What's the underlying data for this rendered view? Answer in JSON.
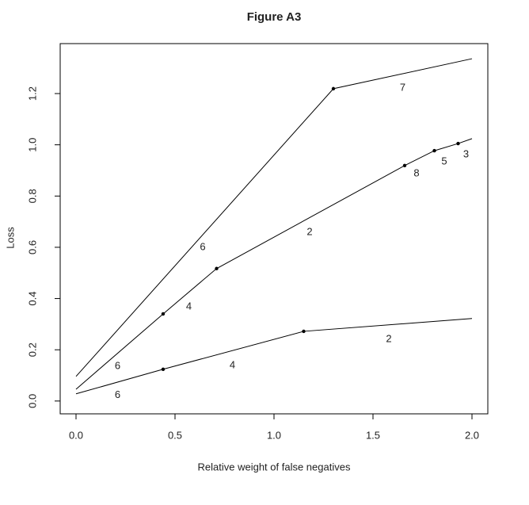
{
  "chart_data": {
    "type": "line",
    "title": "Figure A3",
    "x_label": "Relative weight of false negatives",
    "y_label": "Loss",
    "xlim": [
      -0.08,
      2.08
    ],
    "ylim": [
      -0.05,
      1.395
    ],
    "xticks": [
      {
        "value": 0,
        "label": "0.0"
      },
      {
        "value": 0.5,
        "label": "0.5"
      },
      {
        "value": 1,
        "label": "1.0"
      },
      {
        "value": 1.5,
        "label": "1.5"
      },
      {
        "value": 2,
        "label": "2.0"
      }
    ],
    "yticks": [
      {
        "value": 0,
        "label": "0.0"
      },
      {
        "value": 0.2,
        "label": "0.2"
      },
      {
        "value": 0.4,
        "label": "0.4"
      },
      {
        "value": 0.6,
        "label": "0.6"
      },
      {
        "value": 0.8,
        "label": "0.8"
      },
      {
        "value": 1,
        "label": "1.0"
      },
      {
        "value": 1.2,
        "label": "1.2"
      }
    ],
    "series": [
      {
        "color": "#000000",
        "x": [
          0,
          1.3,
          2.0
        ],
        "values": [
          0.096,
          1.219,
          1.336
        ],
        "markers": {
          "x": [
            1.3
          ],
          "values": [
            1.219
          ]
        }
      },
      {
        "color": "#000000",
        "x": [
          0,
          0.44,
          0.71,
          1.66,
          1.81,
          1.93,
          2.0
        ],
        "values": [
          0.046,
          0.34,
          0.517,
          0.919,
          0.977,
          1.005,
          1.024
        ],
        "markers": {
          "x": [
            0.44,
            0.71,
            1.66,
            1.81,
            1.93
          ],
          "values": [
            0.34,
            0.517,
            0.919,
            0.977,
            1.005
          ]
        }
      },
      {
        "color": "#000000",
        "x": [
          0,
          0.44,
          1.15,
          2.0
        ],
        "values": [
          0.028,
          0.124,
          0.272,
          0.322
        ],
        "markers": {
          "x": [
            0.44,
            1.15
          ],
          "values": [
            0.124,
            0.272
          ]
        }
      }
    ],
    "annotations": [
      {
        "text": "7",
        "x": 1.65,
        "y": 1.222
      },
      {
        "text": "6",
        "x": 0.64,
        "y": 0.6
      },
      {
        "text": "2",
        "x": 1.18,
        "y": 0.659
      },
      {
        "text": "8",
        "x": 1.72,
        "y": 0.888
      },
      {
        "text": "5",
        "x": 1.86,
        "y": 0.934
      },
      {
        "text": "3",
        "x": 1.97,
        "y": 0.962
      },
      {
        "text": "4",
        "x": 0.57,
        "y": 0.368
      },
      {
        "text": "6",
        "x": 0.21,
        "y": 0.136
      },
      {
        "text": "4",
        "x": 0.79,
        "y": 0.139
      },
      {
        "text": "2",
        "x": 1.58,
        "y": 0.241
      },
      {
        "text": "6",
        "x": 0.21,
        "y": 0.022
      }
    ]
  }
}
